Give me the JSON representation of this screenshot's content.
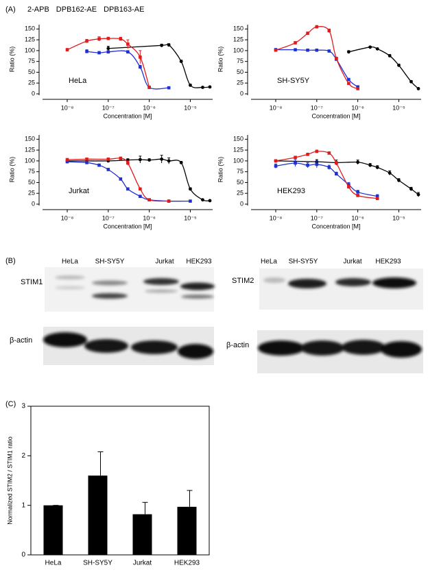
{
  "panels": [
    "(A)",
    "(B)",
    "(C)"
  ],
  "blots": [
    {
      "lanes": [
        "HeLa",
        "SH-SY5Y",
        "Jurkat",
        "HEK293"
      ],
      "protein": "STIM1",
      "loading": "β-actin"
    },
    {
      "lanes": [
        "HeLa",
        "SH-SY5Y",
        "Jurkat",
        "HEK293"
      ],
      "protein": "STIM2",
      "loading": "β-actin"
    }
  ],
  "chart_data": [
    {
      "type": "line",
      "annotation": "HeLa",
      "xlabel": "Concentration [M]",
      "ylabel": "Ratio (%)",
      "xscale": "log",
      "xlim": [
        2.5e-09,
        3.5e-05
      ],
      "ylim": [
        0,
        160
      ],
      "xticks": [
        {
          "value": 1e-08,
          "label": "10⁻⁸"
        },
        {
          "value": 1e-07,
          "label": "10⁻⁷"
        },
        {
          "value": 1e-06,
          "label": "10⁻⁶"
        },
        {
          "value": 1e-05,
          "label": "10⁻⁵"
        }
      ],
      "yticks": [
        0,
        25,
        50,
        75,
        100,
        125,
        150
      ],
      "series": [
        {
          "name": "2-APB",
          "color": "#000000",
          "marker": "circle",
          "x": [
            1e-07,
            2e-06,
            3e-06,
            6e-06,
            1e-05,
            2e-05,
            3e-05
          ],
          "values": [
            105,
            112,
            113,
            75,
            20,
            15,
            16
          ],
          "errors": [
            5,
            3,
            3,
            3,
            2,
            2,
            2
          ]
        },
        {
          "name": "DPB162-AE",
          "color": "#1f2fd0",
          "marker": "square",
          "x": [
            3e-08,
            6e-08,
            1e-07,
            3e-07,
            6e-07,
            1e-06,
            3e-06
          ],
          "values": [
            98,
            95,
            97,
            97,
            62,
            15,
            14
          ],
          "errors": [
            4,
            3,
            3,
            3,
            4,
            2,
            2
          ]
        },
        {
          "name": "DPB163-AE",
          "color": "#e01b1b",
          "marker": "square",
          "x": [
            1e-08,
            3e-08,
            6e-08,
            1e-07,
            2e-07,
            3e-07,
            6e-07,
            1e-06
          ],
          "values": [
            102,
            122,
            127,
            128,
            127,
            115,
            85,
            15
          ],
          "errors": [
            3,
            4,
            5,
            3,
            4,
            10,
            15,
            2
          ]
        }
      ]
    },
    {
      "type": "line",
      "annotation": "SH-SY5Y",
      "xlabel": "Concentration [M]",
      "ylabel": "Ratio (%)",
      "xscale": "log",
      "xlim": [
        2.5e-09,
        3.5e-05
      ],
      "ylim": [
        0,
        160
      ],
      "xticks": [
        {
          "value": 1e-08,
          "label": "10⁻⁸"
        },
        {
          "value": 1e-07,
          "label": "10⁻⁷"
        },
        {
          "value": 1e-06,
          "label": "10⁻⁶"
        },
        {
          "value": 1e-05,
          "label": "10⁻⁵"
        }
      ],
      "yticks": [
        0,
        25,
        50,
        75,
        100,
        125,
        150
      ],
      "series": [
        {
          "color": "#000000",
          "marker": "circle",
          "x": [
            6e-07,
            2e-06,
            3e-06,
            6e-06,
            1e-05,
            2e-05,
            3e-05
          ],
          "values": [
            97,
            108,
            104,
            88,
            66,
            28,
            12
          ],
          "errors": [
            3,
            2,
            2,
            3,
            3,
            3,
            2
          ]
        },
        {
          "color": "#1f2fd0",
          "marker": "square",
          "x": [
            1e-08,
            3e-08,
            6e-08,
            1e-07,
            2e-07,
            3e-07,
            6e-07,
            1e-06
          ],
          "values": [
            102,
            102,
            101,
            101,
            99,
            80,
            33,
            16
          ],
          "errors": [
            3,
            2,
            2,
            2,
            2,
            3,
            3,
            3
          ]
        },
        {
          "color": "#e01b1b",
          "marker": "square",
          "x": [
            1e-08,
            3e-08,
            6e-08,
            1e-07,
            2e-07,
            3e-07,
            6e-07,
            1e-06
          ],
          "values": [
            101,
            118,
            140,
            155,
            146,
            82,
            24,
            12
          ],
          "errors": [
            2,
            3,
            3,
            3,
            4,
            3,
            3,
            2
          ]
        }
      ]
    },
    {
      "type": "line",
      "annotation": "Jurkat",
      "xlabel": "Concentration [M]",
      "ylabel": "Ratio (%)",
      "xscale": "log",
      "xlim": [
        2.5e-09,
        3.5e-05
      ],
      "ylim": [
        0,
        160
      ],
      "xticks": [
        {
          "value": 1e-08,
          "label": "10⁻⁸"
        },
        {
          "value": 1e-07,
          "label": "10⁻⁷"
        },
        {
          "value": 1e-06,
          "label": "10⁻⁶"
        },
        {
          "value": 1e-05,
          "label": "10⁻⁵"
        }
      ],
      "yticks": [
        0,
        25,
        50,
        75,
        100,
        125,
        150
      ],
      "series": [
        {
          "color": "#000000",
          "marker": "circle",
          "x": [
            1e-08,
            1e-07,
            3e-07,
            6e-07,
            1e-06,
            2e-06,
            3e-06,
            6e-06,
            1e-05,
            2e-05,
            3e-05
          ],
          "values": [
            100,
            100,
            102,
            103,
            102,
            104,
            100,
            96,
            35,
            10,
            8
          ],
          "errors": [
            3,
            3,
            3,
            8,
            3,
            9,
            7,
            3,
            3,
            2,
            2
          ]
        },
        {
          "color": "#1f2fd0",
          "marker": "square",
          "x": [
            1e-08,
            3e-08,
            6e-08,
            1e-07,
            2e-07,
            3e-07,
            6e-07,
            1e-06,
            3e-06,
            1e-05
          ],
          "values": [
            98,
            96,
            90,
            80,
            58,
            35,
            18,
            10,
            7,
            7
          ],
          "errors": [
            3,
            3,
            3,
            3,
            3,
            3,
            2,
            2,
            2,
            2
          ]
        },
        {
          "color": "#e01b1b",
          "marker": "square",
          "x": [
            1e-08,
            3e-08,
            1e-07,
            2e-07,
            3e-07,
            6e-07,
            1e-06,
            3e-06
          ],
          "values": [
            103,
            104,
            104,
            106,
            95,
            35,
            10,
            7
          ],
          "errors": [
            2,
            2,
            3,
            3,
            5,
            3,
            2,
            2
          ]
        }
      ]
    },
    {
      "type": "line",
      "annotation": "HEK293",
      "xlabel": "Concentration [M]",
      "ylabel": "Ratio (%)",
      "xscale": "log",
      "xlim": [
        2.5e-09,
        3.5e-05
      ],
      "ylim": [
        0,
        160
      ],
      "xticks": [
        {
          "value": 1e-08,
          "label": "10⁻⁸"
        },
        {
          "value": 1e-07,
          "label": "10⁻⁷"
        },
        {
          "value": 1e-06,
          "label": "10⁻⁶"
        },
        {
          "value": 1e-05,
          "label": "10⁻⁵"
        }
      ],
      "yticks": [
        0,
        25,
        50,
        75,
        100,
        125,
        150
      ],
      "series": [
        {
          "color": "#000000",
          "marker": "circle",
          "x": [
            1e-08,
            1e-07,
            3e-07,
            1e-06,
            2e-06,
            3e-06,
            6e-06,
            1e-05,
            2e-05,
            3e-05
          ],
          "values": [
            100,
            98,
            96,
            97,
            90,
            85,
            72,
            55,
            35,
            22
          ],
          "errors": [
            3,
            5,
            6,
            5,
            4,
            4,
            5,
            4,
            4,
            5
          ]
        },
        {
          "color": "#1f2fd0",
          "marker": "square",
          "x": [
            1e-08,
            3e-08,
            6e-08,
            1e-07,
            2e-07,
            3e-07,
            6e-07,
            1e-06,
            3e-06
          ],
          "values": [
            88,
            95,
            90,
            92,
            85,
            70,
            45,
            28,
            18
          ],
          "errors": [
            5,
            8,
            6,
            8,
            5,
            4,
            5,
            4,
            4
          ]
        },
        {
          "color": "#e01b1b",
          "marker": "square",
          "x": [
            1e-08,
            3e-08,
            6e-08,
            1e-07,
            2e-07,
            3e-07,
            6e-07,
            1e-06,
            3e-06
          ],
          "values": [
            100,
            108,
            115,
            122,
            118,
            95,
            40,
            20,
            13
          ],
          "errors": [
            3,
            3,
            3,
            3,
            3,
            4,
            4,
            3,
            3
          ]
        }
      ]
    },
    {
      "type": "bar",
      "ylabel": "Normalized STIM2 / STIM1 ratio",
      "categories": [
        "HeLa",
        "SH-SY5Y",
        "Jurkat",
        "HEK293"
      ],
      "values": [
        1.0,
        1.6,
        0.82,
        0.97
      ],
      "errors": [
        0,
        0.48,
        0.24,
        0.33
      ],
      "color": "#000000",
      "ylim": [
        0,
        3
      ],
      "yticks": [
        0,
        1,
        2,
        3
      ]
    }
  ]
}
